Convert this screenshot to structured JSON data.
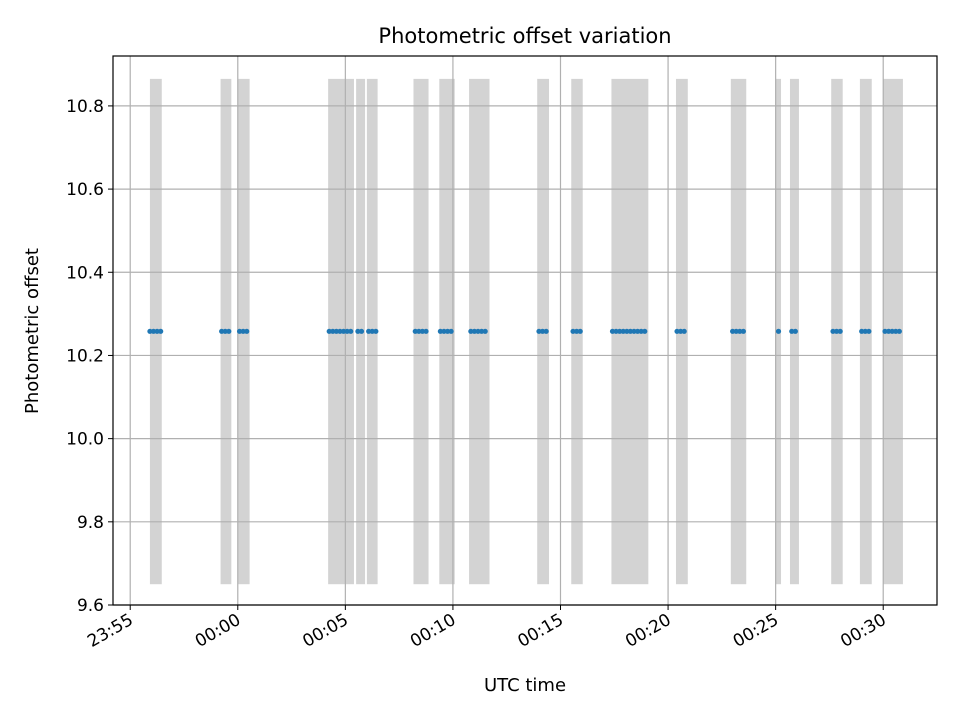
{
  "chart_data": {
    "type": "scatter",
    "title": "Photometric offset variation",
    "xlabel": "UTC time",
    "ylabel": "Photometric offset",
    "x_axis": "time",
    "xlim": [
      "23:54:12",
      "00:32:30"
    ],
    "ylim": [
      9.6,
      10.92
    ],
    "x_ticks": [
      "23:55",
      "00:00",
      "00:05",
      "00:10",
      "00:15",
      "00:20",
      "00:25",
      "00:30"
    ],
    "y_ticks": [
      9.6,
      9.8,
      10.0,
      10.2,
      10.4,
      10.6,
      10.8
    ],
    "grid": true,
    "shaded_band_y": [
      9.65,
      10.865
    ],
    "shaded_intervals": [
      [
        "23:55:55",
        "23:56:28"
      ],
      [
        "23:59:12",
        "23:59:42"
      ],
      [
        "00:00:00",
        "00:00:33"
      ],
      [
        "00:04:12",
        "00:05:24"
      ],
      [
        "00:05:30",
        "00:05:55"
      ],
      [
        "00:06:00",
        "00:06:30"
      ],
      [
        "00:08:10",
        "00:08:52"
      ],
      [
        "00:09:22",
        "00:10:05"
      ],
      [
        "00:10:45",
        "00:11:42"
      ],
      [
        "00:13:55",
        "00:14:28"
      ],
      [
        "00:15:30",
        "00:16:02"
      ],
      [
        "00:17:22",
        "00:19:05"
      ],
      [
        "00:20:22",
        "00:20:55"
      ],
      [
        "00:22:55",
        "00:23:38"
      ],
      [
        "00:25:00",
        "00:25:15"
      ],
      [
        "00:25:40",
        "00:26:05"
      ],
      [
        "00:27:35",
        "00:28:07"
      ],
      [
        "00:28:55",
        "00:29:28"
      ],
      [
        "00:30:00",
        "00:30:55"
      ]
    ],
    "series": [
      {
        "color": "#1f77b4",
        "x": [
          "23:55:55",
          "23:56:05",
          "23:56:15",
          "23:56:25",
          "23:59:15",
          "23:59:25",
          "23:59:35",
          "00:00:05",
          "00:00:15",
          "00:00:25",
          "00:04:15",
          "00:04:25",
          "00:04:35",
          "00:04:45",
          "00:04:55",
          "00:05:05",
          "00:05:15",
          "00:05:35",
          "00:05:45",
          "00:06:05",
          "00:06:15",
          "00:06:25",
          "00:08:15",
          "00:08:25",
          "00:08:35",
          "00:08:45",
          "00:09:25",
          "00:09:35",
          "00:09:45",
          "00:09:55",
          "00:10:50",
          "00:11:00",
          "00:11:10",
          "00:11:20",
          "00:11:30",
          "00:14:00",
          "00:14:10",
          "00:14:20",
          "00:15:35",
          "00:15:45",
          "00:15:55",
          "00:17:25",
          "00:17:35",
          "00:17:45",
          "00:17:55",
          "00:18:05",
          "00:18:15",
          "00:18:25",
          "00:18:35",
          "00:18:45",
          "00:18:55",
          "00:20:25",
          "00:20:35",
          "00:20:45",
          "00:23:00",
          "00:23:10",
          "00:23:20",
          "00:23:30",
          "00:25:08",
          "00:25:45",
          "00:25:55",
          "00:27:40",
          "00:27:50",
          "00:28:00",
          "00:29:00",
          "00:29:10",
          "00:29:20",
          "00:30:05",
          "00:30:15",
          "00:30:25",
          "00:30:35",
          "00:30:45"
        ],
        "y": [
          10.258,
          10.258,
          10.258,
          10.258,
          10.258,
          10.258,
          10.258,
          10.258,
          10.258,
          10.258,
          10.258,
          10.258,
          10.258,
          10.258,
          10.258,
          10.258,
          10.258,
          10.258,
          10.258,
          10.258,
          10.258,
          10.258,
          10.258,
          10.258,
          10.258,
          10.258,
          10.258,
          10.258,
          10.258,
          10.258,
          10.258,
          10.258,
          10.258,
          10.258,
          10.258,
          10.258,
          10.258,
          10.258,
          10.258,
          10.258,
          10.258,
          10.258,
          10.258,
          10.258,
          10.258,
          10.258,
          10.258,
          10.258,
          10.258,
          10.258,
          10.258,
          10.258,
          10.258,
          10.258,
          10.258,
          10.258,
          10.258,
          10.258,
          10.258,
          10.258,
          10.258,
          10.258,
          10.258,
          10.258,
          10.258,
          10.258,
          10.258,
          10.258,
          10.258,
          10.258,
          10.258,
          10.258
        ]
      }
    ],
    "colors": {
      "shade": "#d3d3d3",
      "grid": "#b0b0b0",
      "point": "#1f77b4"
    }
  }
}
